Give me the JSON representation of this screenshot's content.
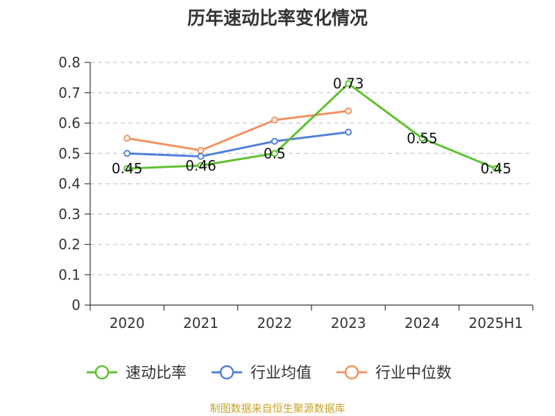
{
  "chart_data": {
    "type": "line",
    "title": "历年速动比率变化情况",
    "categories": [
      "2020",
      "2021",
      "2022",
      "2023",
      "2024",
      "2025H1"
    ],
    "ylim": [
      0,
      0.8
    ],
    "yticks": [
      0,
      0.1,
      0.2,
      0.3,
      0.4,
      0.5,
      0.6,
      0.7,
      0.8
    ],
    "ytick_labels": [
      "0",
      "0.1",
      "0.2",
      "0.3",
      "0.4",
      "0.5",
      "0.6",
      "0.7",
      "0.8"
    ],
    "grid": true,
    "legend_position": "bottom",
    "series": [
      {
        "name": "速动比率",
        "color": "#5cc12e",
        "values": [
          0.45,
          0.46,
          0.5,
          0.73,
          0.55,
          0.45
        ],
        "labels": [
          "0.45",
          "0.46",
          "0.5",
          "0.73",
          "0.55",
          "0.45"
        ]
      },
      {
        "name": "行业均值",
        "color": "#4f7fdb",
        "values": [
          0.5,
          0.49,
          0.54,
          0.57,
          null,
          null
        ]
      },
      {
        "name": "行业中位数",
        "color": "#f5905e",
        "values": [
          0.55,
          0.51,
          0.61,
          0.64,
          null,
          null
        ]
      }
    ]
  },
  "source_note": "制图数据来自恒生聚源数据库"
}
